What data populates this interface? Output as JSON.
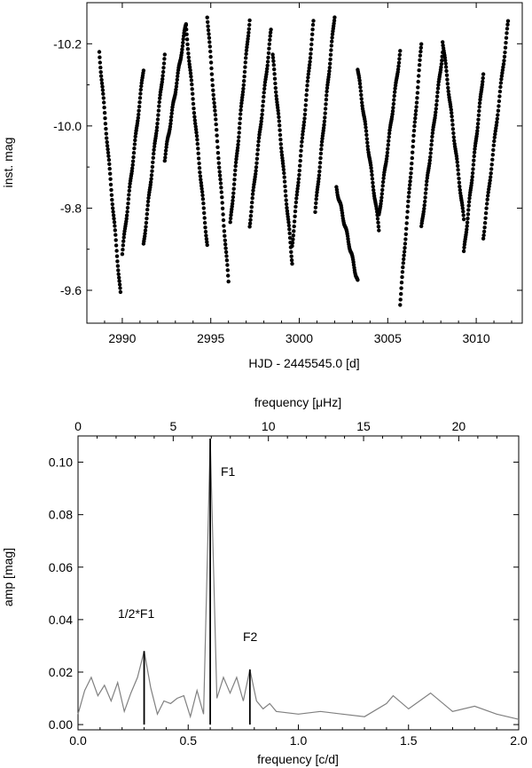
{
  "chart_data": [
    {
      "type": "scatter",
      "title": "",
      "xlabel": "HJD - 2445545.0 [d]",
      "ylabel": "inst. mag",
      "xlim": [
        2988.0,
        3012.6
      ],
      "ylim": [
        -9.52,
        -10.3
      ],
      "y_inverted": true,
      "x_ticks": [
        2990,
        2995,
        3000,
        3005,
        3010
      ],
      "y_ticks": [
        -10.2,
        -10.0,
        -9.8,
        -9.6
      ],
      "x_tick_labels": [
        "2990",
        "2995",
        "3000",
        "3005",
        "3010"
      ],
      "y_tick_labels": [
        "-10.2",
        "-10.0",
        "-9.8",
        "-9.6"
      ],
      "series": [
        {
          "nights": [
            {
              "x": [
                2988.7,
                2989.9
              ],
              "y": [
                -10.18,
                -9.59
              ]
            },
            {
              "x": [
                2990.0,
                2991.2
              ],
              "y": [
                -9.69,
                -10.14
              ]
            },
            {
              "x": [
                2991.2,
                2992.4
              ],
              "y": [
                -9.71,
                -10.17
              ]
            },
            {
              "x": [
                2992.4,
                2993.6
              ],
              "y": [
                -9.92,
                -10.25
              ]
            },
            {
              "x": [
                2993.6,
                2994.8
              ],
              "y": [
                -10.24,
                -9.71
              ]
            },
            {
              "x": [
                2994.8,
                2996.0
              ],
              "y": [
                -10.27,
                -9.62
              ]
            },
            {
              "x": [
                2996.1,
                2997.2
              ],
              "y": [
                -9.76,
                -10.26
              ]
            },
            {
              "x": [
                2997.2,
                2998.4
              ],
              "y": [
                -9.76,
                -10.23
              ]
            },
            {
              "x": [
                2998.5,
                2999.6
              ],
              "y": [
                -10.17,
                -9.67
              ]
            },
            {
              "x": [
                2999.6,
                3000.8
              ],
              "y": [
                -9.71,
                -10.25
              ]
            },
            {
              "x": [
                3000.9,
                3002.0
              ],
              "y": [
                -9.79,
                -10.27
              ]
            },
            {
              "x": [
                3002.1,
                3003.3
              ],
              "y": [
                -9.85,
                -9.62
              ]
            },
            {
              "x": [
                3003.3,
                3004.5
              ],
              "y": [
                -10.14,
                -9.75
              ]
            },
            {
              "x": [
                3004.5,
                3005.7
              ],
              "y": [
                -9.78,
                -10.18
              ]
            },
            {
              "x": [
                3005.7,
                3006.9
              ],
              "y": [
                -9.57,
                -10.2
              ]
            },
            {
              "x": [
                3006.9,
                3008.1
              ],
              "y": [
                -9.75,
                -10.18
              ]
            },
            {
              "x": [
                3008.1,
                3009.3
              ],
              "y": [
                -10.21,
                -9.77
              ]
            },
            {
              "x": [
                3009.3,
                3010.4
              ],
              "y": [
                -9.69,
                -10.13
              ]
            },
            {
              "x": [
                3010.4,
                3011.8
              ],
              "y": [
                -9.73,
                -10.25
              ]
            }
          ]
        }
      ]
    },
    {
      "type": "line",
      "title": "",
      "xlabel": "frequency [c/d]",
      "ylabel": "amp [mag]",
      "top_xlabel": "frequency [μHz]",
      "xlim": [
        0.0,
        2.0
      ],
      "ylim": [
        -0.002,
        0.11
      ],
      "x_ticks": [
        0.0,
        0.5,
        1.0,
        1.5,
        2.0
      ],
      "y_ticks": [
        0.0,
        0.02,
        0.04,
        0.06,
        0.08,
        0.1
      ],
      "x_tick_labels": [
        "0.0",
        "0.5",
        "1.0",
        "1.5",
        "2.0"
      ],
      "y_tick_labels": [
        "0.00",
        "0.02",
        "0.04",
        "0.06",
        "0.08",
        "0.10"
      ],
      "top_ticks": [
        0,
        5,
        10,
        15,
        20
      ],
      "top_tick_labels": [
        "0",
        "5",
        "10",
        "15",
        "20"
      ],
      "peaks": [
        {
          "label": "F1",
          "freq": 0.6,
          "amp": 0.109
        },
        {
          "label": "1/2*F1",
          "freq": 0.3,
          "amp": 0.028
        },
        {
          "label": "F2",
          "freq": 0.78,
          "amp": 0.021
        }
      ],
      "spectrum": {
        "x": [
          0.0,
          0.03,
          0.06,
          0.09,
          0.12,
          0.15,
          0.18,
          0.21,
          0.24,
          0.27,
          0.3,
          0.33,
          0.36,
          0.39,
          0.42,
          0.45,
          0.48,
          0.51,
          0.54,
          0.57,
          0.6,
          0.63,
          0.66,
          0.69,
          0.72,
          0.75,
          0.78,
          0.81,
          0.84,
          0.87,
          0.9,
          1.0,
          1.1,
          1.2,
          1.3,
          1.4,
          1.43,
          1.5,
          1.6,
          1.7,
          1.8,
          1.9,
          2.0
        ],
        "y": [
          0.004,
          0.013,
          0.018,
          0.011,
          0.015,
          0.009,
          0.016,
          0.005,
          0.012,
          0.018,
          0.028,
          0.014,
          0.004,
          0.009,
          0.008,
          0.01,
          0.011,
          0.003,
          0.013,
          0.004,
          0.109,
          0.01,
          0.018,
          0.012,
          0.018,
          0.009,
          0.021,
          0.009,
          0.006,
          0.008,
          0.005,
          0.004,
          0.005,
          0.004,
          0.003,
          0.008,
          0.011,
          0.006,
          0.012,
          0.005,
          0.007,
          0.004,
          0.002
        ]
      }
    }
  ]
}
